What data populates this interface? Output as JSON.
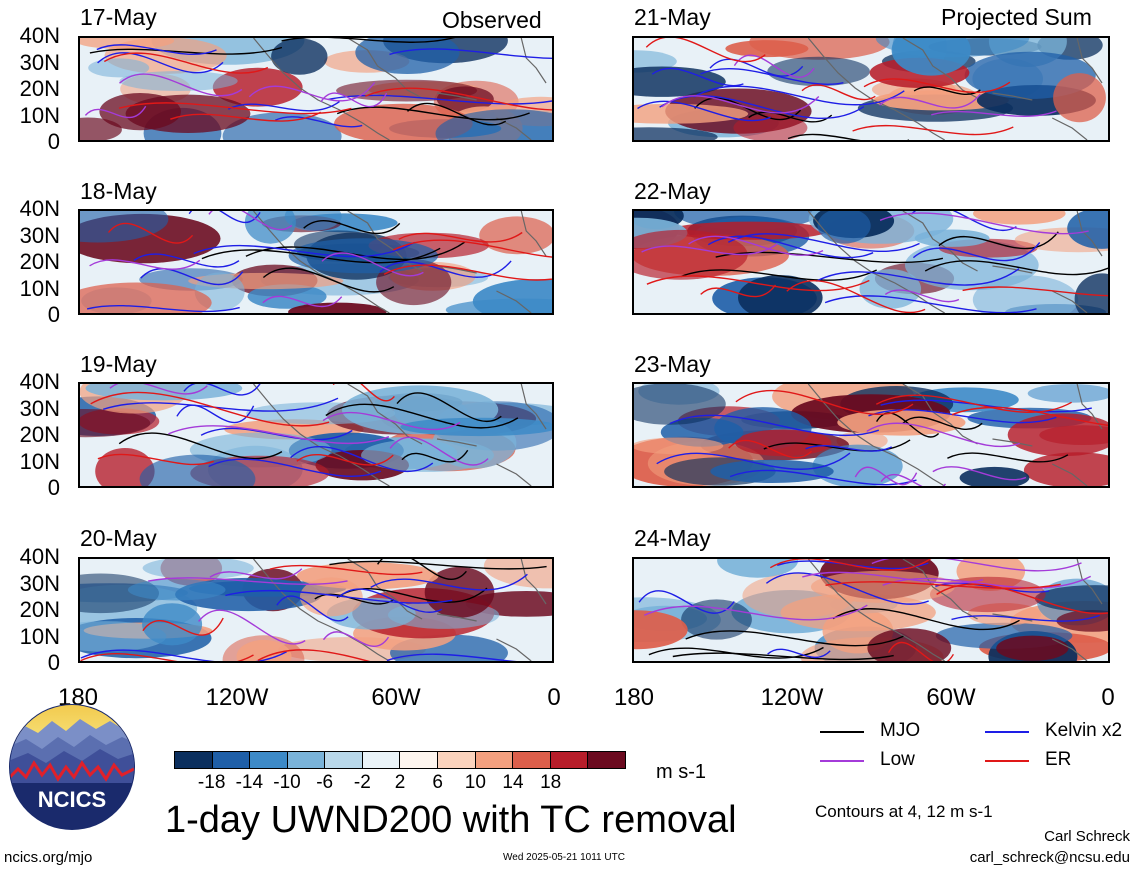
{
  "header": {
    "left_title": "Observed",
    "right_title": "Projected Sum"
  },
  "panels": {
    "left": [
      {
        "date": "17-May",
        "seed": 3
      },
      {
        "date": "18-May",
        "seed": 7
      },
      {
        "date": "19-May",
        "seed": 11
      },
      {
        "date": "20-May",
        "seed": 13
      }
    ],
    "right": [
      {
        "date": "21-May",
        "seed": 17
      },
      {
        "date": "22-May",
        "seed": 19
      },
      {
        "date": "23-May",
        "seed": 23
      },
      {
        "date": "24-May",
        "seed": 29
      }
    ]
  },
  "axes": {
    "y_ticks": [
      "40N",
      "30N",
      "20N",
      "10N",
      "0"
    ],
    "x_ticks": [
      "180",
      "120W",
      "60W",
      "0"
    ]
  },
  "colorbar": {
    "colors": [
      "#0b2f5e",
      "#1f5fa8",
      "#3d8ac7",
      "#7ab3d9",
      "#b9d8ea",
      "#eaf3f8",
      "#fdf5ef",
      "#fbd3bd",
      "#f3a07f",
      "#dd5f4b",
      "#b71d2a",
      "#6b0a1f"
    ],
    "ticks": [
      "-18",
      "-14",
      "-10",
      "-6",
      "-2",
      "2",
      "6",
      "10",
      "14",
      "18"
    ],
    "units": "m s-1"
  },
  "title": "1-day UWND200 with TC removal",
  "legend": {
    "items": [
      {
        "label": "MJO",
        "color": "#000000"
      },
      {
        "label": "Kelvin x2",
        "color": "#1e1ee6"
      },
      {
        "label": "Low",
        "color": "#a43bd9"
      },
      {
        "label": "ER",
        "color": "#e01818"
      }
    ],
    "contour_note": "Contours at 4, 12 m s-1"
  },
  "footer": {
    "logo_text": "NCICS",
    "url": "ncics.org/mjo",
    "timestamp": "Wed 2025-05-21 1011 UTC",
    "author": "Carl Schreck",
    "email": "carl_schreck@ncsu.edu"
  }
}
